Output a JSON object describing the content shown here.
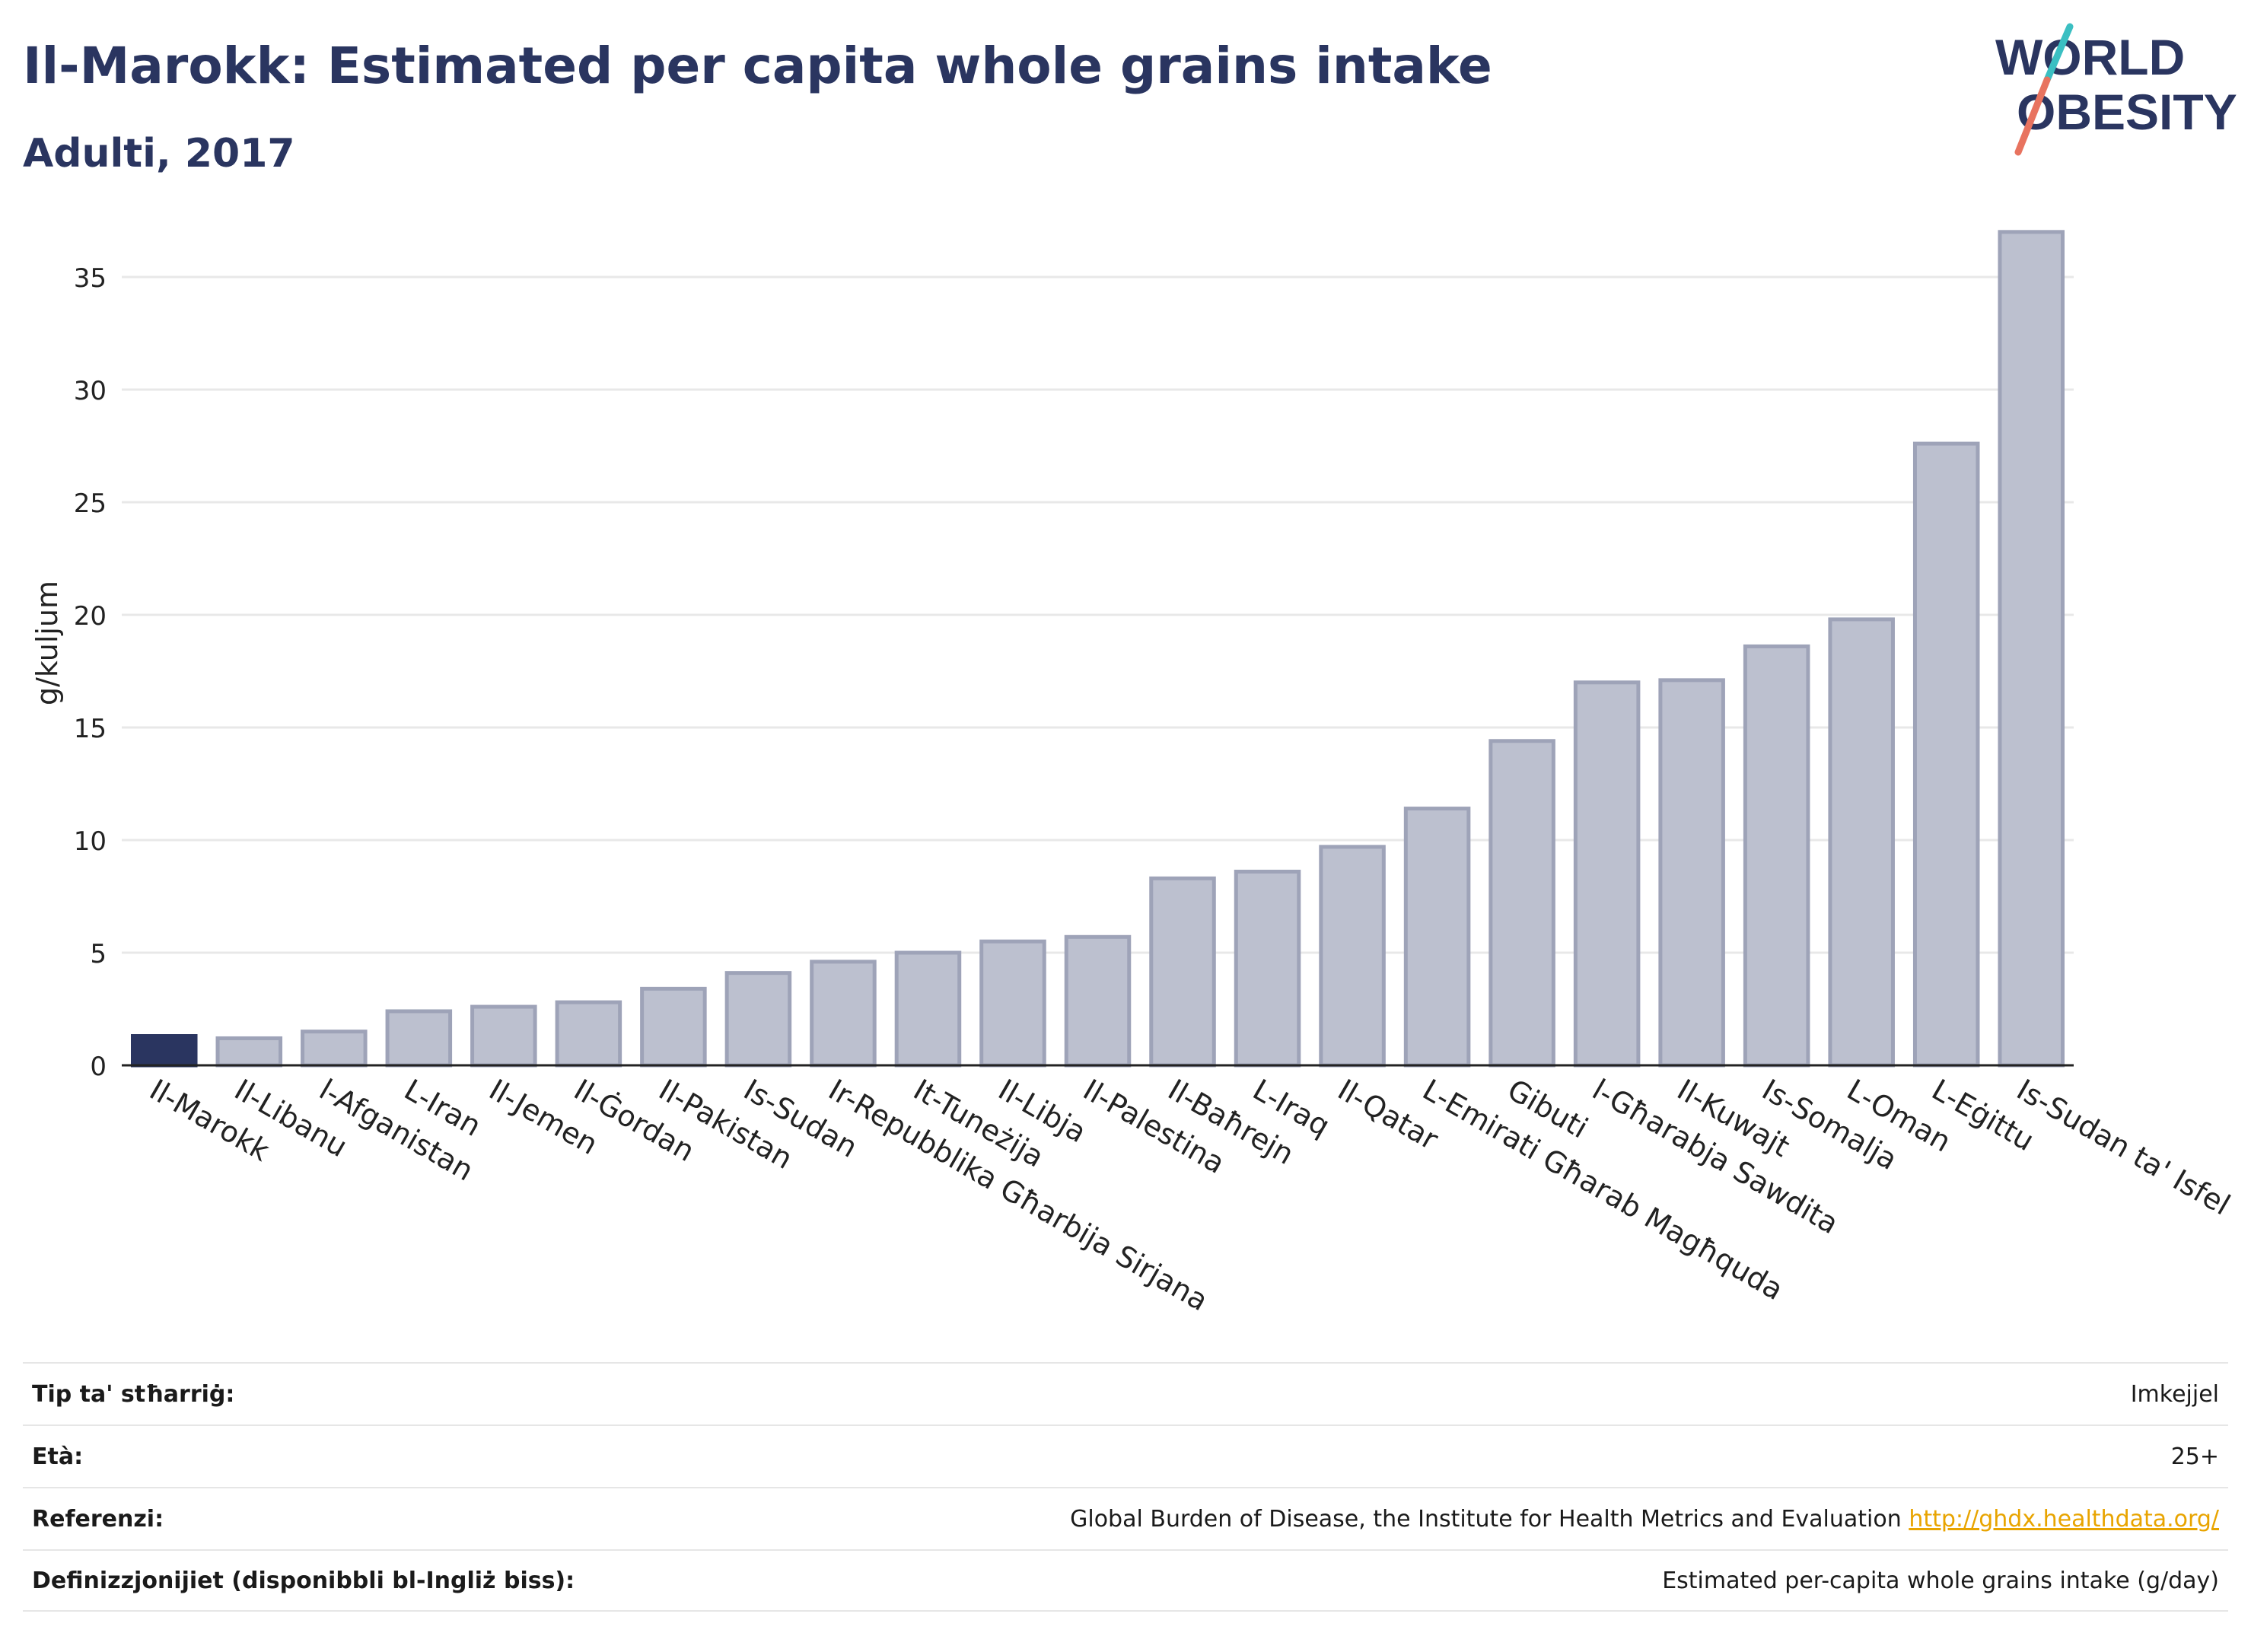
{
  "header": {
    "title": "Il-Marokk: Estimated per capita whole grains intake",
    "subtitle": "Adulti, 2017",
    "logo_line1": "WORLD",
    "logo_line2": "OBESITY"
  },
  "colors": {
    "highlight": "#2a3560",
    "bar_fill": "#bcc0cf",
    "bar_stroke": "#9ea3b8",
    "grid": "#e8e8e8",
    "logo_text": "#2a3560",
    "logo_slash_teal": "#3bbfc2",
    "logo_slash_coral": "#e8735f"
  },
  "chart_data": {
    "type": "bar",
    "ylabel": "g/kuljum",
    "xlabel": "",
    "ylim": [
      0,
      37.5
    ],
    "yticks": [
      0,
      5,
      10,
      15,
      20,
      25,
      30,
      35
    ],
    "grid": true,
    "highlight_index": 0,
    "categories": [
      "Il-Marokk",
      "Il-Libanu",
      "l-Afganistan",
      "L-Iran",
      "Il-Jemen",
      "Il-Ġordan",
      "Il-Pakistan",
      "Is-Sudan",
      "Ir-Repubblika Għarbija Sirjana",
      "It-Tuneżija",
      "Il-Libja",
      "Il-Palestina",
      "Il-Baħrejn",
      "L-Iraq",
      "Il-Qatar",
      "L-Emirati Għarab Magħquda",
      "Gibuti",
      "l-Għarabja Sawdita",
      "Il-Kuwajt",
      "Is-Somalja",
      "L-Oman",
      "L-Eġittu",
      "Is-Sudan ta' Isfel"
    ],
    "values": [
      1.3,
      1.2,
      1.5,
      2.4,
      2.6,
      2.8,
      3.4,
      4.1,
      4.6,
      5.0,
      5.5,
      5.7,
      8.3,
      8.6,
      9.7,
      11.4,
      14.4,
      17.0,
      17.1,
      18.6,
      19.8,
      27.6,
      37.0
    ]
  },
  "meta": {
    "rows": [
      {
        "label": "Tip ta' stħarriġ:",
        "value": "Imkejjel"
      },
      {
        "label": "Età:",
        "value": "25+"
      },
      {
        "label": "Referenzi:",
        "value": "Global Burden of Disease, the Institute for Health Metrics and Evaluation",
        "link": "http://ghdx.healthdata.org/"
      },
      {
        "label": "Definizzjonijiet (disponibbli bl-Ingliż biss):",
        "value": "Estimated per-capita whole grains intake (g/day)"
      }
    ]
  }
}
